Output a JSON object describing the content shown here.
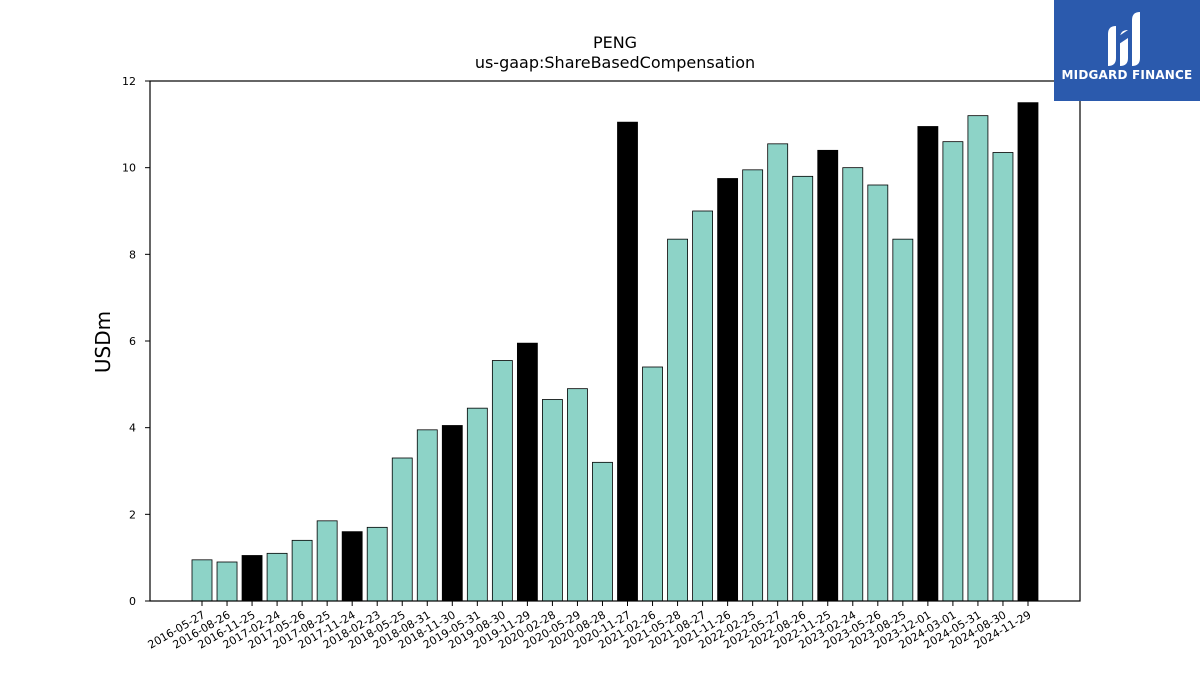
{
  "chart_data": {
    "type": "bar",
    "title": "PENG",
    "subtitle": "us-gaap:ShareBasedCompensation",
    "xlabel": "",
    "ylabel": "USDm",
    "ylim": [
      0,
      12
    ],
    "yticks": [
      0,
      2,
      4,
      6,
      8,
      10,
      12
    ],
    "grid": false,
    "colors": {
      "quarter": "#8dd3c7",
      "fiscal_year_end": "#000000",
      "edge": "#000000"
    },
    "categories": [
      "2016-05-27",
      "2016-08-26",
      "2016-11-25",
      "2017-02-24",
      "2017-05-26",
      "2017-08-25",
      "2017-11-24",
      "2018-02-23",
      "2018-05-25",
      "2018-08-31",
      "2018-11-30",
      "2019-05-31",
      "2019-08-30",
      "2019-11-29",
      "2020-02-28",
      "2020-05-29",
      "2020-08-28",
      "2020-11-27",
      "2021-02-26",
      "2021-05-28",
      "2021-08-27",
      "2021-11-26",
      "2022-02-25",
      "2022-05-27",
      "2022-08-26",
      "2022-11-25",
      "2023-02-24",
      "2023-05-26",
      "2023-08-25",
      "2023-12-01",
      "2024-03-01",
      "2024-05-31",
      "2024-08-30",
      "2024-11-29"
    ],
    "values": [
      0.95,
      0.9,
      1.05,
      1.1,
      1.4,
      1.85,
      1.6,
      1.7,
      3.3,
      3.95,
      4.05,
      4.45,
      5.55,
      5.95,
      4.65,
      4.9,
      3.2,
      11.05,
      5.4,
      8.35,
      9.0,
      9.75,
      9.95,
      10.55,
      9.8,
      10.4,
      10.0,
      9.6,
      8.35,
      10.95,
      10.6,
      11.2,
      10.35,
      11.5
    ],
    "highlight": [
      false,
      false,
      true,
      false,
      false,
      false,
      true,
      false,
      false,
      false,
      true,
      false,
      false,
      true,
      false,
      false,
      false,
      true,
      false,
      false,
      false,
      true,
      false,
      false,
      false,
      true,
      false,
      false,
      false,
      true,
      false,
      false,
      false,
      true
    ]
  },
  "logo": {
    "text": "MIDGARD FINANCE",
    "icon": "midgard-logo-icon",
    "background": "#2b5aad"
  }
}
